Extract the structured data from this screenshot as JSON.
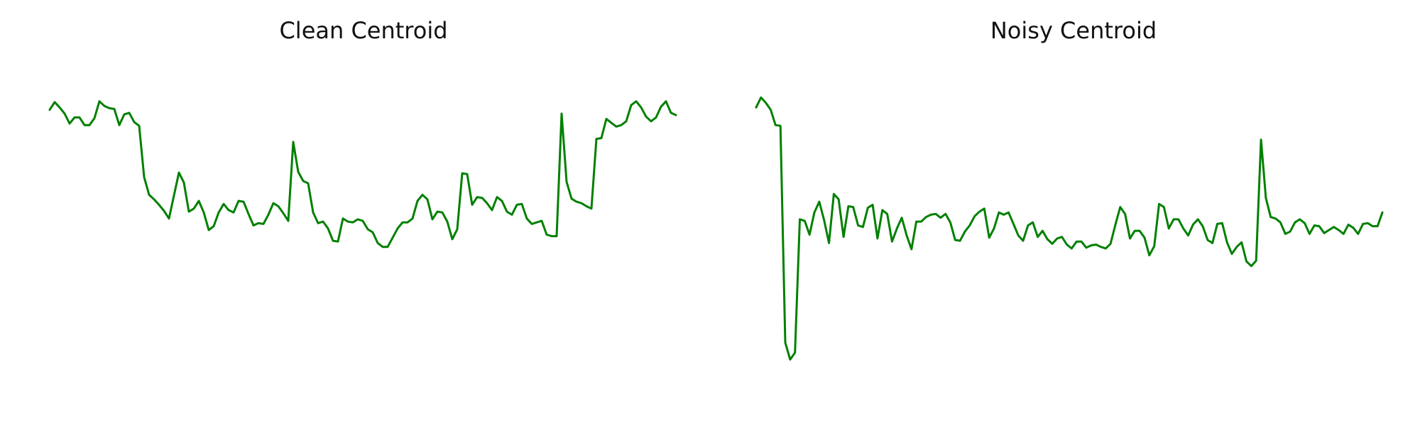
{
  "chart_data": [
    {
      "type": "line",
      "title": "Clean Centroid",
      "xlabel": "",
      "ylabel": "",
      "grid": false,
      "axes_visible": false,
      "ylim": [
        -1.9,
        2.4
      ],
      "series": [
        {
          "color": "#008000",
          "values": [
            1.82,
            1.92,
            1.85,
            1.77,
            1.64,
            1.72,
            1.72,
            1.62,
            1.62,
            1.71,
            1.93,
            1.87,
            1.84,
            1.83,
            1.62,
            1.76,
            1.78,
            1.66,
            1.61,
            0.94,
            0.71,
            0.65,
            0.58,
            0.5,
            0.4,
            0.7,
            1.0,
            0.87,
            0.49,
            0.53,
            0.63,
            0.48,
            0.25,
            0.3,
            0.48,
            0.59,
            0.51,
            0.48,
            0.63,
            0.62,
            0.46,
            0.31,
            0.34,
            0.33,
            0.45,
            0.6,
            0.56,
            0.47,
            0.37,
            1.4,
            1.01,
            0.89,
            0.86,
            0.48,
            0.34,
            0.36,
            0.27,
            0.11,
            0.1,
            0.4,
            0.36,
            0.35,
            0.39,
            0.37,
            0.26,
            0.22,
            0.08,
            0.03,
            0.03,
            0.15,
            0.27,
            0.35,
            0.35,
            0.4,
            0.63,
            0.71,
            0.65,
            0.39,
            0.49,
            0.48,
            0.36,
            0.13,
            0.26,
            0.99,
            0.98,
            0.58,
            0.68,
            0.67,
            0.6,
            0.51,
            0.68,
            0.63,
            0.49,
            0.45,
            0.58,
            0.59,
            0.4,
            0.33,
            0.35,
            0.37,
            0.19,
            0.17,
            0.17,
            1.77,
            0.88,
            0.66,
            0.62,
            0.6,
            0.56,
            0.53,
            1.44,
            1.45,
            1.7,
            1.65,
            1.6,
            1.62,
            1.67,
            1.88,
            1.93,
            1.85,
            1.73,
            1.67,
            1.72,
            1.86,
            1.93,
            1.78,
            1.75
          ]
        }
      ]
    },
    {
      "type": "line",
      "title": "Noisy Centroid",
      "xlabel": "",
      "ylabel": "",
      "grid": false,
      "axes_visible": false,
      "ylim": [
        -1.9,
        2.4
      ],
      "series": [
        {
          "color": "#008000",
          "values": [
            1.85,
            1.98,
            1.91,
            1.82,
            1.62,
            1.61,
            -1.22,
            -1.44,
            -1.35,
            0.39,
            0.37,
            0.19,
            0.48,
            0.62,
            0.38,
            0.08,
            0.72,
            0.65,
            0.16,
            0.56,
            0.55,
            0.31,
            0.29,
            0.54,
            0.58,
            0.14,
            0.51,
            0.46,
            0.1,
            0.27,
            0.41,
            0.18,
            0.0,
            0.36,
            0.36,
            0.42,
            0.45,
            0.46,
            0.41,
            0.46,
            0.35,
            0.12,
            0.11,
            0.23,
            0.31,
            0.43,
            0.49,
            0.53,
            0.15,
            0.27,
            0.48,
            0.45,
            0.48,
            0.33,
            0.18,
            0.11,
            0.31,
            0.35,
            0.16,
            0.24,
            0.13,
            0.07,
            0.14,
            0.16,
            0.06,
            0.01,
            0.1,
            0.1,
            0.02,
            0.05,
            0.06,
            0.03,
            0.01,
            0.07,
            0.32,
            0.55,
            0.46,
            0.14,
            0.24,
            0.24,
            0.15,
            -0.08,
            0.04,
            0.59,
            0.55,
            0.27,
            0.39,
            0.39,
            0.27,
            0.18,
            0.32,
            0.39,
            0.3,
            0.12,
            0.08,
            0.33,
            0.34,
            0.09,
            -0.06,
            0.03,
            0.09,
            -0.16,
            -0.22,
            -0.15,
            1.43,
            0.67,
            0.42,
            0.4,
            0.35,
            0.2,
            0.23,
            0.35,
            0.39,
            0.34,
            0.2,
            0.31,
            0.3,
            0.21,
            0.25,
            0.29,
            0.25,
            0.2,
            0.32,
            0.28,
            0.2,
            0.33,
            0.34,
            0.3,
            0.3,
            0.48
          ]
        }
      ]
    }
  ]
}
